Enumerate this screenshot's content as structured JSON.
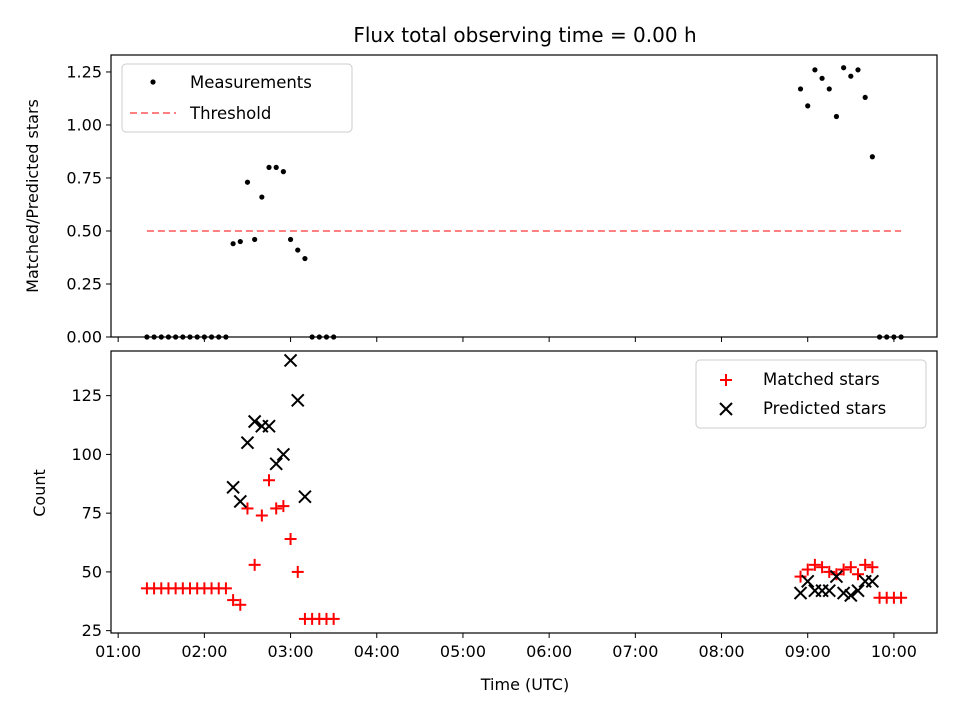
{
  "chart_data": [
    {
      "type": "scatter",
      "title": "Flux total observing time = 0.00 h",
      "ylabel": "Matched/Predicted stars",
      "xlabel": "",
      "ylim": [
        0,
        1.33
      ],
      "yticks": [
        "0.00",
        "0.25",
        "0.50",
        "0.75",
        "1.00",
        "1.25"
      ],
      "grid": false,
      "legend_position": "top-left",
      "series": [
        {
          "name": "Measurements",
          "marker": "dot",
          "color": "#000000",
          "points": [
            [
              "01:20",
              0
            ],
            [
              "01:25",
              0
            ],
            [
              "01:30",
              0
            ],
            [
              "01:35",
              0
            ],
            [
              "01:40",
              0
            ],
            [
              "01:45",
              0
            ],
            [
              "01:50",
              0
            ],
            [
              "01:55",
              0
            ],
            [
              "02:00",
              0
            ],
            [
              "02:05",
              0
            ],
            [
              "02:10",
              0
            ],
            [
              "02:15",
              0
            ],
            [
              "02:20",
              0.44
            ],
            [
              "02:25",
              0.45
            ],
            [
              "02:30",
              0.73
            ],
            [
              "02:35",
              0.46
            ],
            [
              "02:40",
              0.66
            ],
            [
              "02:45",
              0.8
            ],
            [
              "02:50",
              0.8
            ],
            [
              "02:55",
              0.78
            ],
            [
              "03:00",
              0.46
            ],
            [
              "03:05",
              0.41
            ],
            [
              "03:10",
              0.37
            ],
            [
              "03:15",
              0
            ],
            [
              "03:20",
              0
            ],
            [
              "03:25",
              0
            ],
            [
              "03:30",
              0
            ],
            [
              "08:55",
              1.17
            ],
            [
              "09:00",
              1.09
            ],
            [
              "09:05",
              1.26
            ],
            [
              "09:10",
              1.22
            ],
            [
              "09:15",
              1.17
            ],
            [
              "09:20",
              1.04
            ],
            [
              "09:25",
              1.27
            ],
            [
              "09:30",
              1.23
            ],
            [
              "09:35",
              1.26
            ],
            [
              "09:40",
              1.13
            ],
            [
              "09:45",
              0.85
            ],
            [
              "09:50",
              0
            ],
            [
              "09:55",
              0
            ],
            [
              "10:00",
              0
            ],
            [
              "10:05",
              0
            ]
          ]
        },
        {
          "name": "Threshold",
          "marker": "dashed-line",
          "color": "#ff8080",
          "points": [
            [
              "01:20",
              0.5
            ],
            [
              "10:05",
              0.5
            ]
          ]
        }
      ]
    },
    {
      "type": "scatter",
      "title": "",
      "ylabel": "Count",
      "xlabel": "Time (UTC)",
      "ylim": [
        24,
        144
      ],
      "yticks": [
        "25",
        "50",
        "75",
        "100",
        "125"
      ],
      "xticks": [
        "01:00",
        "02:00",
        "03:00",
        "04:00",
        "05:00",
        "06:00",
        "07:00",
        "08:00",
        "09:00",
        "10:00"
      ],
      "xlim": [
        "00:55",
        "10:30"
      ],
      "grid": false,
      "legend_position": "top-right",
      "series": [
        {
          "name": "Matched stars",
          "marker": "plus",
          "color": "#ff0000",
          "points": [
            [
              "01:20",
              43
            ],
            [
              "01:25",
              43
            ],
            [
              "01:30",
              43
            ],
            [
              "01:35",
              43
            ],
            [
              "01:40",
              43
            ],
            [
              "01:45",
              43
            ],
            [
              "01:50",
              43
            ],
            [
              "01:55",
              43
            ],
            [
              "02:00",
              43
            ],
            [
              "02:05",
              43
            ],
            [
              "02:10",
              43
            ],
            [
              "02:15",
              43
            ],
            [
              "02:20",
              38
            ],
            [
              "02:25",
              36
            ],
            [
              "02:30",
              77
            ],
            [
              "02:35",
              53
            ],
            [
              "02:40",
              74
            ],
            [
              "02:45",
              89
            ],
            [
              "02:50",
              77
            ],
            [
              "02:55",
              78
            ],
            [
              "03:00",
              64
            ],
            [
              "03:05",
              50
            ],
            [
              "03:10",
              30
            ],
            [
              "03:15",
              30
            ],
            [
              "03:20",
              30
            ],
            [
              "03:25",
              30
            ],
            [
              "03:30",
              30
            ],
            [
              "08:55",
              48
            ],
            [
              "09:00",
              51
            ],
            [
              "09:05",
              53
            ],
            [
              "09:10",
              52
            ],
            [
              "09:15",
              50
            ],
            [
              "09:20",
              49
            ],
            [
              "09:25",
              51
            ],
            [
              "09:30",
              52
            ],
            [
              "09:35",
              49
            ],
            [
              "09:40",
              53
            ],
            [
              "09:45",
              52
            ],
            [
              "09:50",
              39
            ],
            [
              "09:55",
              39
            ],
            [
              "10:00",
              39
            ],
            [
              "10:05",
              39
            ]
          ]
        },
        {
          "name": "Predicted stars",
          "marker": "x",
          "color": "#000000",
          "points": [
            [
              "02:20",
              86
            ],
            [
              "02:25",
              80
            ],
            [
              "02:30",
              105
            ],
            [
              "02:35",
              114
            ],
            [
              "02:40",
              112
            ],
            [
              "02:45",
              112
            ],
            [
              "02:50",
              96
            ],
            [
              "02:55",
              100
            ],
            [
              "03:00",
              140
            ],
            [
              "03:05",
              123
            ],
            [
              "03:10",
              82
            ],
            [
              "08:55",
              41
            ],
            [
              "09:00",
              46
            ],
            [
              "09:05",
              42
            ],
            [
              "09:10",
              42
            ],
            [
              "09:15",
              42
            ],
            [
              "09:20",
              48
            ],
            [
              "09:25",
              41
            ],
            [
              "09:30",
              40
            ],
            [
              "09:35",
              42
            ],
            [
              "09:40",
              46
            ],
            [
              "09:45",
              46
            ]
          ]
        }
      ]
    }
  ]
}
